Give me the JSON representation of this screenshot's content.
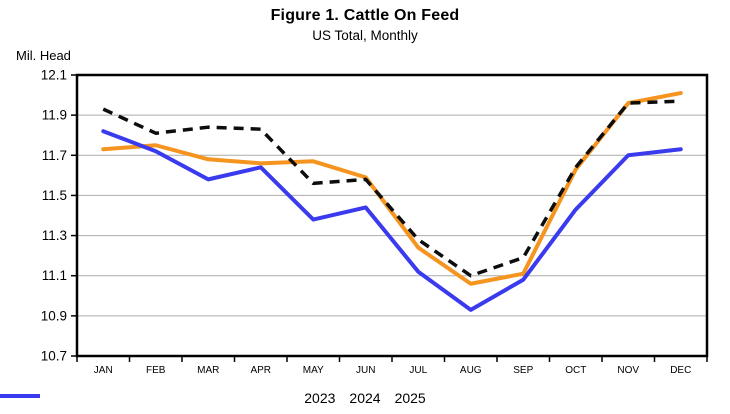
{
  "chart_data": {
    "type": "line",
    "title": "Figure 1. Cattle On Feed",
    "subtitle": "US Total, Monthly",
    "ylabel": "Mil. Head",
    "xlabel": "",
    "categories": [
      "JAN",
      "FEB",
      "MAR",
      "APR",
      "MAY",
      "JUN",
      "JUL",
      "AUG",
      "SEP",
      "OCT",
      "NOV",
      "DEC"
    ],
    "series": [
      {
        "name": "2023",
        "color": "#F5941E",
        "style": "solid",
        "values": [
          11.73,
          11.75,
          11.68,
          11.66,
          11.67,
          11.59,
          11.24,
          11.06,
          11.11,
          11.63,
          11.96,
          12.01
        ]
      },
      {
        "name": "2024",
        "color": "#0D0D0D",
        "style": "dashed",
        "values": [
          11.93,
          11.81,
          11.84,
          11.83,
          11.56,
          11.58,
          11.28,
          11.1,
          11.19,
          11.64,
          11.96,
          11.97
        ]
      },
      {
        "name": "2025",
        "color": "#3A3AEE",
        "style": "solid",
        "values": [
          11.82,
          11.72,
          11.58,
          11.64,
          11.38,
          11.44,
          11.12,
          10.93,
          11.08,
          11.43,
          11.7,
          11.73
        ]
      }
    ],
    "ylim": [
      10.7,
      12.1
    ],
    "ytick_step": 0.2,
    "yticks": [
      12.1,
      11.9,
      11.7,
      11.5,
      11.3,
      11.1,
      10.9,
      10.7
    ],
    "grid": true,
    "gridline_color": "#ABABAB",
    "axis_color": "#000000",
    "legend_position": "bottom"
  }
}
